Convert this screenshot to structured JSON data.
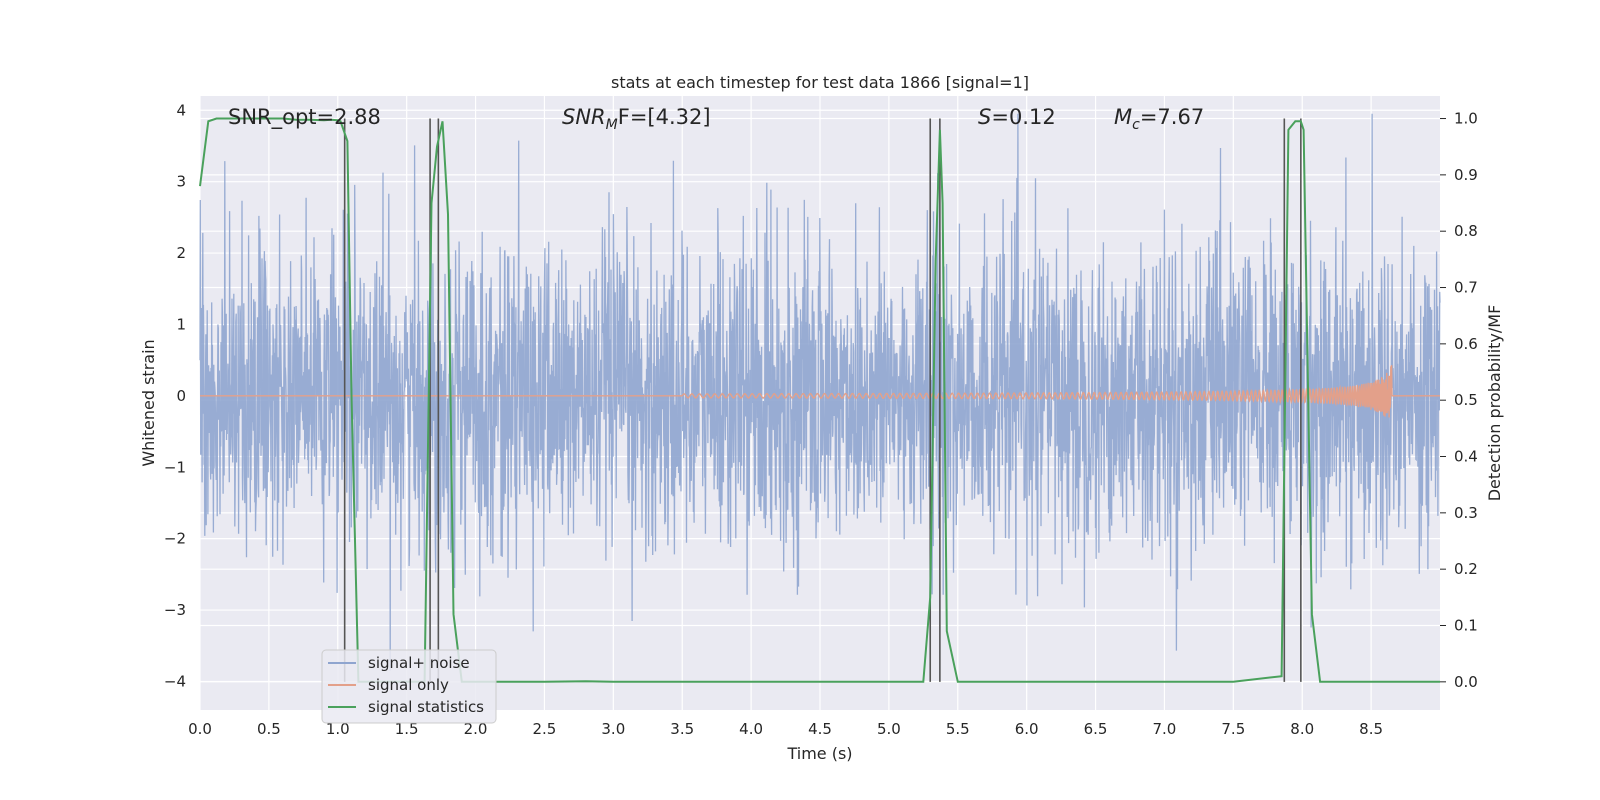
{
  "chart_data": {
    "type": "line",
    "title": "stats at each timestep for test data 1866 [signal=1]",
    "xlabel": "Time (s)",
    "ylabel": "Whitened strain",
    "y2label": "Detection probability/MF",
    "xlim": [
      0,
      9
    ],
    "ylim": [
      -4.4,
      4.2
    ],
    "y2lim": [
      -0.05,
      1.04
    ],
    "x_ticks": [
      "0.0",
      "0.5",
      "1.0",
      "1.5",
      "2.0",
      "2.5",
      "3.0",
      "3.5",
      "4.0",
      "4.5",
      "5.0",
      "5.5",
      "6.0",
      "6.5",
      "7.0",
      "7.5",
      "8.0",
      "8.5"
    ],
    "y_ticks": [
      "4",
      "3",
      "2",
      "1",
      "0",
      "−1",
      "−2",
      "−3",
      "−4"
    ],
    "y2_ticks": [
      "1.0",
      "0.9",
      "0.8",
      "0.7",
      "0.6",
      "0.5",
      "0.4",
      "0.3",
      "0.2",
      "0.1",
      "0.0"
    ],
    "grid": true,
    "legend_position": "lower-left",
    "annotations": {
      "snr_opt": "SNR_opt=2.88",
      "snr_mf_prefix": "SNR",
      "snr_mf_sub": "M",
      "snr_mf_rest": "F=[4.32]",
      "s_prefix": "S",
      "s_rest": "=0.12",
      "mc_prefix": "M",
      "mc_sub": "c",
      "mc_rest": "=7.67"
    },
    "series": [
      {
        "name": "signal+ noise",
        "color": "#8fa5cf",
        "note_values": "random noise, amplitude ~±2.5 with spikes to ±3.9, over 0 to 9 s"
      },
      {
        "name": "signal only",
        "color": "#e3a08a",
        "chirp": {
          "start_time": 3.5,
          "end_time": 8.65,
          "peak_amplitude": 0.45
        }
      },
      {
        "name": "signal statistics",
        "color": "#4aa15c",
        "axis": "right",
        "x": [
          0.0,
          0.06,
          0.12,
          0.2,
          0.3,
          0.4,
          0.5,
          0.6,
          0.7,
          0.8,
          0.9,
          0.95,
          1.0,
          1.02,
          1.07,
          1.1,
          1.15,
          1.2,
          1.6,
          1.63,
          1.68,
          1.72,
          1.76,
          1.8,
          1.84,
          1.9,
          2.0,
          2.5,
          2.8,
          3.0,
          3.5,
          4.0,
          4.5,
          5.0,
          5.25,
          5.3,
          5.34,
          5.37,
          5.39,
          5.42,
          5.5,
          5.55,
          6.0,
          6.5,
          7.0,
          7.5,
          7.85,
          7.9,
          7.95,
          7.99,
          8.01,
          8.07,
          8.13,
          8.2,
          8.6,
          9.0
        ],
        "values": [
          0.88,
          0.995,
          1.0,
          1.0,
          1.0,
          1.0,
          1.0,
          1.0,
          0.998,
          0.998,
          0.997,
          0.998,
          0.997,
          0.995,
          0.96,
          0.5,
          0.0,
          0.0,
          0.0,
          0.0,
          0.85,
          0.95,
          0.995,
          0.83,
          0.12,
          0.0,
          0.0,
          0.0,
          0.001,
          0.0,
          0.0,
          0.0,
          0.0,
          0.0,
          0.0,
          0.15,
          0.75,
          0.98,
          0.85,
          0.09,
          0.0,
          0.0,
          0.0,
          0.0,
          0.0,
          0.0,
          0.01,
          0.98,
          0.995,
          0.995,
          0.98,
          0.12,
          0.0,
          0.0,
          0.0,
          0.0
        ]
      }
    ],
    "vertical_markers": [
      1.05,
      1.67,
      1.73,
      5.3,
      5.37,
      7.87,
      7.99
    ]
  }
}
